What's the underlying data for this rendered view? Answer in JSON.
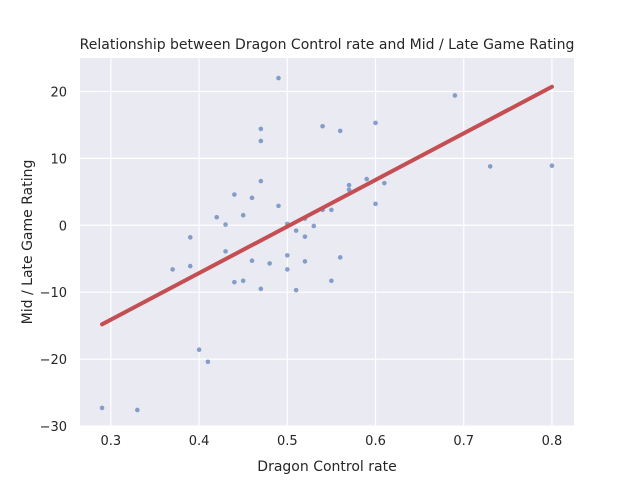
{
  "colors": {
    "plot_background": "#eaeaf2",
    "grid": "#ffffff",
    "points": "#4c72b0",
    "fit_line": "#c44e52",
    "text": "#262626"
  },
  "chart_data": {
    "type": "scatter",
    "title": "Relationship between Dragon Control rate and Mid / Late Game Rating",
    "xlabel": "Dragon Control rate",
    "ylabel": "Mid / Late Game Rating",
    "xlim": [
      0.265,
      0.825
    ],
    "ylim": [
      -30,
      25
    ],
    "xticks": [
      0.3,
      0.4,
      0.5,
      0.6,
      0.7,
      0.8
    ],
    "yticks": [
      -30,
      -20,
      -10,
      0,
      10,
      20
    ],
    "grid": true,
    "series": [
      {
        "kind": "scatter",
        "points": [
          {
            "x": 0.29,
            "y": -27.3
          },
          {
            "x": 0.33,
            "y": -27.6
          },
          {
            "x": 0.37,
            "y": -6.6
          },
          {
            "x": 0.39,
            "y": -6.1
          },
          {
            "x": 0.39,
            "y": -1.8
          },
          {
            "x": 0.4,
            "y": -18.6
          },
          {
            "x": 0.41,
            "y": -20.4
          },
          {
            "x": 0.42,
            "y": 1.2
          },
          {
            "x": 0.43,
            "y": 0.1
          },
          {
            "x": 0.43,
            "y": -3.9
          },
          {
            "x": 0.44,
            "y": 4.6
          },
          {
            "x": 0.44,
            "y": -8.5
          },
          {
            "x": 0.45,
            "y": 1.5
          },
          {
            "x": 0.45,
            "y": -8.3
          },
          {
            "x": 0.46,
            "y": 4.1
          },
          {
            "x": 0.46,
            "y": -5.3
          },
          {
            "x": 0.47,
            "y": 14.4
          },
          {
            "x": 0.47,
            "y": 12.6
          },
          {
            "x": 0.47,
            "y": 6.6
          },
          {
            "x": 0.47,
            "y": -9.5
          },
          {
            "x": 0.48,
            "y": -5.7
          },
          {
            "x": 0.49,
            "y": 22.0
          },
          {
            "x": 0.49,
            "y": 2.9
          },
          {
            "x": 0.5,
            "y": 0.2
          },
          {
            "x": 0.5,
            "y": -4.5
          },
          {
            "x": 0.5,
            "y": -6.6
          },
          {
            "x": 0.51,
            "y": -0.8
          },
          {
            "x": 0.51,
            "y": -9.7
          },
          {
            "x": 0.52,
            "y": 1.0
          },
          {
            "x": 0.52,
            "y": -1.7
          },
          {
            "x": 0.52,
            "y": -5.4
          },
          {
            "x": 0.53,
            "y": -0.1
          },
          {
            "x": 0.54,
            "y": 14.8
          },
          {
            "x": 0.54,
            "y": 2.3
          },
          {
            "x": 0.55,
            "y": 2.3
          },
          {
            "x": 0.55,
            "y": -8.3
          },
          {
            "x": 0.56,
            "y": 14.1
          },
          {
            "x": 0.56,
            "y": -4.8
          },
          {
            "x": 0.57,
            "y": 6.0
          },
          {
            "x": 0.57,
            "y": 5.3
          },
          {
            "x": 0.59,
            "y": 6.9
          },
          {
            "x": 0.6,
            "y": 15.3
          },
          {
            "x": 0.6,
            "y": 3.2
          },
          {
            "x": 0.61,
            "y": 6.3
          },
          {
            "x": 0.69,
            "y": 19.4
          },
          {
            "x": 0.73,
            "y": 8.8
          },
          {
            "x": 0.8,
            "y": 8.9
          }
        ]
      },
      {
        "kind": "line",
        "points": [
          {
            "x": 0.29,
            "y": -14.8
          },
          {
            "x": 0.8,
            "y": 20.7
          }
        ]
      }
    ]
  }
}
